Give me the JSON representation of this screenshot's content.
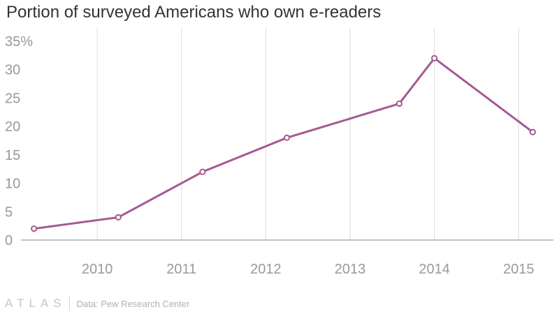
{
  "title": "Portion of surveyed Americans who own e-readers",
  "footer": {
    "logo": "ATLAS",
    "source": "Data: Pew Research Center"
  },
  "colors": {
    "line": "#a55a93",
    "grid": "#d9d9d9",
    "baseline": "#888888",
    "text": "#333333",
    "tick": "#999999"
  },
  "chart_data": {
    "type": "line",
    "title": "Portion of surveyed Americans who own e-readers",
    "xlabel": "",
    "ylabel": "",
    "x_ticks": [
      "2010",
      "2011",
      "2012",
      "2013",
      "2014",
      "2015"
    ],
    "y_ticks": [
      "0",
      "5",
      "10",
      "15",
      "20",
      "25",
      "30",
      "35%"
    ],
    "ylim": [
      0,
      35
    ],
    "xlim": [
      "2009-04",
      "2015-04"
    ],
    "grid": "vertical",
    "legend": "none",
    "series": [
      {
        "points": [
          {
            "x": "2009-04",
            "y": 2
          },
          {
            "x": "2010-04",
            "y": 4
          },
          {
            "x": "2011-04",
            "y": 12
          },
          {
            "x": "2012-04",
            "y": 18
          },
          {
            "x": "2013-08",
            "y": 24
          },
          {
            "x": "2014-01",
            "y": 32
          },
          {
            "x": "2015-03",
            "y": 19
          }
        ]
      }
    ]
  }
}
